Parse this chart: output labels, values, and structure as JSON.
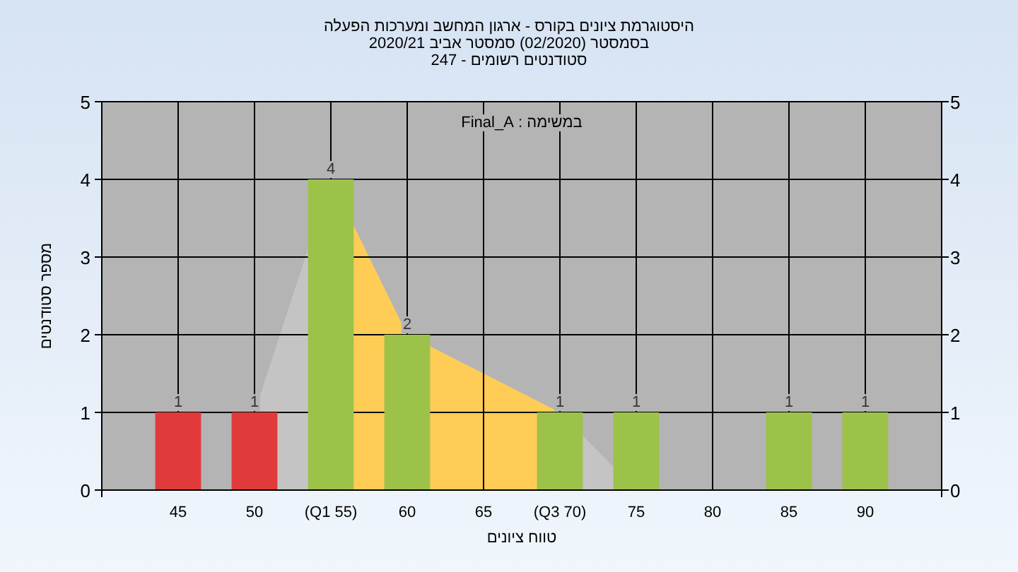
{
  "chart_data": {
    "type": "bar",
    "title": "היסטוגרמת ציונים בקורס - ארגון המחשב ומערכות הפעלה",
    "subtitle": [
      "בסמסטר (02/2020) סמסטר אביב 2020/21",
      "סטודנטים רשומים - 247"
    ],
    "xlabel": "טווח ציונים",
    "ylabel": "מספר סטודנטים",
    "annotations": [
      "במשימה : Final_A"
    ],
    "categories": [
      "45",
      "50",
      "(Q1 55)",
      "60",
      "65",
      "(Q3 70)",
      "75",
      "80",
      "85",
      "90"
    ],
    "series": [
      {
        "type": "area",
        "color": "#c4c4c4",
        "values": [
          null,
          1,
          4,
          2,
          1.5,
          1,
          0,
          null,
          null,
          null
        ]
      },
      {
        "type": "area",
        "color": "#ffcc55",
        "values": [
          null,
          null,
          4,
          2,
          1.5,
          1,
          null,
          null,
          null,
          null
        ]
      },
      {
        "type": "bar",
        "colors": [
          "#e03a3a",
          "#e03a3a",
          "#9cc24a",
          "#9cc24a",
          "#9cc24a",
          "#9cc24a",
          "#9cc24a",
          "#9cc24a",
          "#9cc24a",
          "#9cc24a"
        ],
        "values": [
          1,
          1,
          4,
          2,
          0,
          1,
          1,
          0,
          1,
          1
        ],
        "value_labels": [
          "1",
          "1",
          "4",
          "2",
          null,
          "1",
          "1",
          null,
          "1",
          "1"
        ]
      }
    ],
    "ylim": [
      0,
      5
    ],
    "yticks": [
      0,
      1,
      2,
      3,
      4,
      5
    ],
    "y2lim": [
      0,
      5
    ],
    "y2ticks": [
      0,
      1,
      2,
      3,
      4,
      5
    ],
    "grid": true
  }
}
